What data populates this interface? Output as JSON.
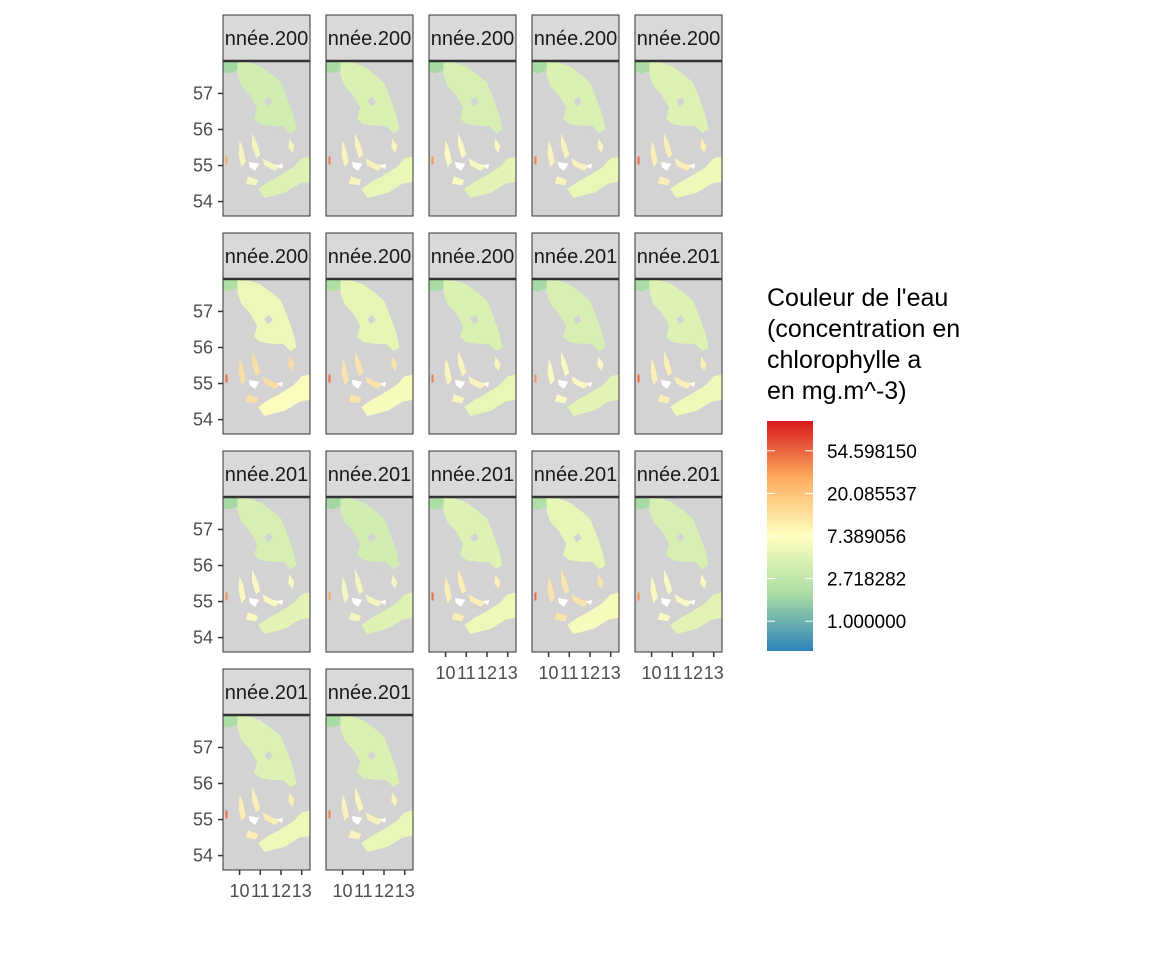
{
  "chart_data": {
    "type": "heatmap",
    "facet_label_prefix": "nnée.",
    "facets": [
      {
        "label": "nnée.200",
        "scale": 0.95
      },
      {
        "label": "nnée.200",
        "scale": 1.05
      },
      {
        "label": "nnée.200",
        "scale": 1.0
      },
      {
        "label": "nnée.200",
        "scale": 1.05
      },
      {
        "label": "nnée.200",
        "scale": 1.1
      },
      {
        "label": "nnée.200",
        "scale": 1.25
      },
      {
        "label": "nnée.200",
        "scale": 1.2
      },
      {
        "label": "nnée.200",
        "scale": 1.05
      },
      {
        "label": "nnée.201",
        "scale": 1.0
      },
      {
        "label": "nnée.201",
        "scale": 1.1
      },
      {
        "label": "nnée.201",
        "scale": 1.0
      },
      {
        "label": "nnée.201",
        "scale": 0.95
      },
      {
        "label": "nnée.201",
        "scale": 1.1
      },
      {
        "label": "nnée.201",
        "scale": 1.2
      },
      {
        "label": "nnée.201",
        "scale": 1.0
      },
      {
        "label": "nnée.201",
        "scale": 1.1
      },
      {
        "label": "nnée.201",
        "scale": 1.05
      }
    ],
    "layout": {
      "ncol": 5,
      "nrow": 4
    },
    "x_axis": {
      "ticks": [
        10,
        11,
        12,
        13
      ],
      "tick_labels": [
        "10",
        "11",
        "12",
        "13"
      ],
      "lim": [
        9.2,
        13.4
      ]
    },
    "y_axis": {
      "ticks": [
        54,
        55,
        56,
        57
      ],
      "tick_labels": [
        "54",
        "55",
        "56",
        "57"
      ],
      "lim": [
        53.6,
        57.9
      ]
    },
    "legend": {
      "title_lines": [
        "Couleur de l'eau",
        "(concentration en",
        "chlorophylle a",
        "en mg.m^-3)"
      ],
      "labels": [
        "54.598150",
        "20.085537",
        "7.389056",
        "2.718282",
        "1.000000"
      ],
      "breaks_log": [
        4,
        3,
        2,
        1,
        0
      ],
      "limits_log": [
        -0.7,
        4.7
      ],
      "scale": "log",
      "placement": "right",
      "palette": [
        "#2b83ba",
        "#abdda4",
        "#ffffbf",
        "#fdae61",
        "#d7191c"
      ]
    },
    "colors": {
      "panel_bg": "#d3d3d3",
      "strip_bg": "#d9d9d9",
      "border": "#333333",
      "land": "#ffffff"
    }
  }
}
